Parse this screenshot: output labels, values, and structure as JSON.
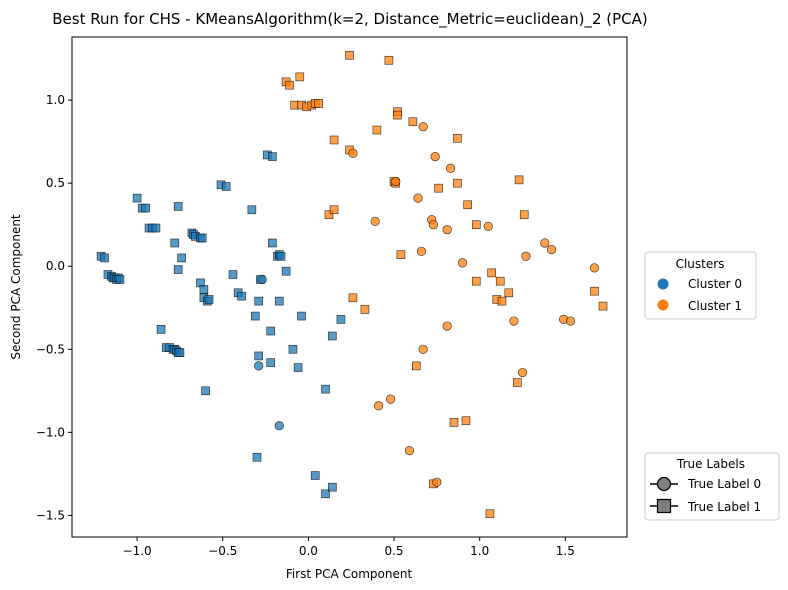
{
  "chart_data": {
    "type": "scatter",
    "title": "Best Run for CHS - KMeansAlgorithm(k=2, Distance_Metric=euclidean)_2 (PCA)",
    "xlabel": "First PCA Component",
    "ylabel": "Second PCA Component",
    "xlim": [
      -1.38,
      1.86
    ],
    "ylim": [
      -1.63,
      1.38
    ],
    "xticks": [
      -1.0,
      -0.5,
      0.0,
      0.5,
      1.0,
      1.5
    ],
    "yticks": [
      -1.5,
      -1.0,
      -0.5,
      0.0,
      0.5,
      1.0
    ],
    "xtick_labels": [
      "−1.0",
      "−0.5",
      "0.0",
      "0.5",
      "1.0",
      "1.5"
    ],
    "ytick_labels": [
      "−1.5",
      "−1.0",
      "−0.5",
      "0.0",
      "0.5",
      "1.0"
    ],
    "grid": false,
    "cluster_legend": {
      "title": "Clusters",
      "placement": "right-center",
      "entries": [
        {
          "label": "Cluster 0",
          "color": "#1f77b4"
        },
        {
          "label": "Cluster 1",
          "color": "#ff7f0e"
        }
      ]
    },
    "label_legend": {
      "title": "True Labels",
      "placement": "lower-right",
      "entries": [
        {
          "label": "True Label 0",
          "marker": "circle"
        },
        {
          "label": "True Label 1",
          "marker": "square"
        }
      ]
    },
    "series": [
      {
        "cluster": 0,
        "true_label": 1,
        "color": "#1f77b4",
        "marker": "square",
        "points": [
          [
            -1.0,
            0.41
          ],
          [
            -0.97,
            0.35
          ],
          [
            -0.95,
            0.35
          ],
          [
            -0.93,
            0.23
          ],
          [
            -0.91,
            0.23
          ],
          [
            -0.89,
            0.23
          ],
          [
            -0.76,
            0.36
          ],
          [
            -0.78,
            0.14
          ],
          [
            -0.76,
            -0.02
          ],
          [
            -0.74,
            0.05
          ],
          [
            -0.68,
            0.2
          ],
          [
            -0.67,
            0.19
          ],
          [
            -0.66,
            0.18
          ],
          [
            -0.63,
            0.17
          ],
          [
            -0.62,
            0.17
          ],
          [
            -0.63,
            -0.1
          ],
          [
            -0.61,
            -0.14
          ],
          [
            -0.61,
            -0.19
          ],
          [
            -0.59,
            -0.21
          ],
          [
            -0.58,
            -0.2
          ],
          [
            -0.51,
            0.49
          ],
          [
            -0.48,
            0.48
          ],
          [
            -0.44,
            -0.05
          ],
          [
            -0.41,
            -0.16
          ],
          [
            -0.39,
            -0.18
          ],
          [
            -0.33,
            0.34
          ],
          [
            -0.31,
            -0.3
          ],
          [
            -0.29,
            -0.21
          ],
          [
            -0.28,
            -0.08
          ],
          [
            -0.24,
            0.67
          ],
          [
            -0.21,
            0.66
          ],
          [
            -0.21,
            0.14
          ],
          [
            -0.22,
            -0.39
          ],
          [
            -0.22,
            -0.58
          ],
          [
            -0.18,
            0.06
          ],
          [
            -0.17,
            0.07
          ],
          [
            -0.16,
            0.06
          ],
          [
            -0.17,
            -0.21
          ],
          [
            -0.13,
            -0.03
          ],
          [
            -0.09,
            -0.5
          ],
          [
            -0.06,
            -0.61
          ],
          [
            -0.04,
            -0.3
          ],
          [
            -0.29,
            -0.54
          ],
          [
            -0.3,
            -1.15
          ],
          [
            -0.6,
            -0.75
          ],
          [
            -1.21,
            0.06
          ],
          [
            -1.19,
            0.05
          ],
          [
            -1.17,
            -0.05
          ],
          [
            -1.15,
            -0.06
          ],
          [
            -1.14,
            -0.07
          ],
          [
            -1.13,
            -0.07
          ],
          [
            -1.12,
            -0.08
          ],
          [
            -1.11,
            -0.07
          ],
          [
            -1.1,
            -0.08
          ],
          [
            -0.86,
            -0.38
          ],
          [
            -0.83,
            -0.49
          ],
          [
            -0.81,
            -0.49
          ],
          [
            -0.79,
            -0.5
          ],
          [
            -0.78,
            -0.5
          ],
          [
            -0.77,
            -0.51
          ],
          [
            -0.76,
            -0.52
          ],
          [
            -0.75,
            -0.52
          ],
          [
            0.14,
            -0.42
          ],
          [
            0.1,
            -0.74
          ],
          [
            0.19,
            -0.32
          ],
          [
            0.04,
            -1.26
          ],
          [
            0.1,
            -1.37
          ],
          [
            0.14,
            -1.33
          ]
        ]
      },
      {
        "cluster": 0,
        "true_label": 0,
        "color": "#1f77b4",
        "marker": "circle",
        "points": [
          [
            -0.27,
            -0.08
          ],
          [
            -0.29,
            -0.6
          ],
          [
            -0.17,
            -0.96
          ]
        ]
      },
      {
        "cluster": 1,
        "true_label": 1,
        "color": "#ff7f0e",
        "marker": "square",
        "points": [
          [
            -0.13,
            1.11
          ],
          [
            -0.11,
            1.09
          ],
          [
            -0.05,
            1.14
          ],
          [
            -0.08,
            0.97
          ],
          [
            -0.04,
            0.97
          ],
          [
            -0.01,
            0.96
          ],
          [
            0.02,
            0.97
          ],
          [
            0.04,
            0.98
          ],
          [
            0.06,
            0.98
          ],
          [
            0.24,
            1.27
          ],
          [
            0.47,
            1.24
          ],
          [
            0.15,
            0.76
          ],
          [
            0.24,
            0.7
          ],
          [
            0.4,
            0.82
          ],
          [
            0.52,
            0.93
          ],
          [
            0.52,
            0.91
          ],
          [
            0.61,
            0.87
          ],
          [
            0.87,
            0.77
          ],
          [
            0.5,
            0.51
          ],
          [
            0.51,
            0.5
          ],
          [
            0.76,
            0.47
          ],
          [
            0.87,
            0.5
          ],
          [
            0.12,
            0.31
          ],
          [
            0.15,
            0.34
          ],
          [
            0.93,
            0.37
          ],
          [
            0.98,
            0.25
          ],
          [
            1.23,
            0.52
          ],
          [
            1.26,
            0.31
          ],
          [
            0.54,
            0.07
          ],
          [
            0.98,
            -0.09
          ],
          [
            1.07,
            -0.04
          ],
          [
            1.1,
            -0.2
          ],
          [
            1.12,
            -0.09
          ],
          [
            1.13,
            -0.21
          ],
          [
            1.17,
            -0.16
          ],
          [
            0.26,
            -0.19
          ],
          [
            0.33,
            -0.26
          ],
          [
            0.63,
            -0.6
          ],
          [
            0.85,
            -0.94
          ],
          [
            0.92,
            -0.93
          ],
          [
            0.73,
            -1.31
          ],
          [
            1.06,
            -1.49
          ],
          [
            1.22,
            -0.7
          ],
          [
            1.67,
            -0.15
          ],
          [
            1.72,
            -0.24
          ]
        ]
      },
      {
        "cluster": 1,
        "true_label": 0,
        "color": "#ff7f0e",
        "marker": "circle",
        "points": [
          [
            0.67,
            0.84
          ],
          [
            0.74,
            0.66
          ],
          [
            0.83,
            0.59
          ],
          [
            0.26,
            0.68
          ],
          [
            0.51,
            0.51
          ],
          [
            0.64,
            0.41
          ],
          [
            0.39,
            0.27
          ],
          [
            0.72,
            0.28
          ],
          [
            0.73,
            0.25
          ],
          [
            0.81,
            0.22
          ],
          [
            0.66,
            0.09
          ],
          [
            0.9,
            0.02
          ],
          [
            1.05,
            0.24
          ],
          [
            1.38,
            0.14
          ],
          [
            1.42,
            0.1
          ],
          [
            1.27,
            0.06
          ],
          [
            1.67,
            -0.01
          ],
          [
            1.2,
            -0.33
          ],
          [
            1.49,
            -0.32
          ],
          [
            1.53,
            -0.33
          ],
          [
            0.81,
            -0.36
          ],
          [
            0.67,
            -0.5
          ],
          [
            1.25,
            -0.64
          ],
          [
            0.41,
            -0.84
          ],
          [
            0.48,
            -0.8
          ],
          [
            0.59,
            -1.11
          ],
          [
            0.75,
            -1.3
          ]
        ]
      }
    ]
  }
}
